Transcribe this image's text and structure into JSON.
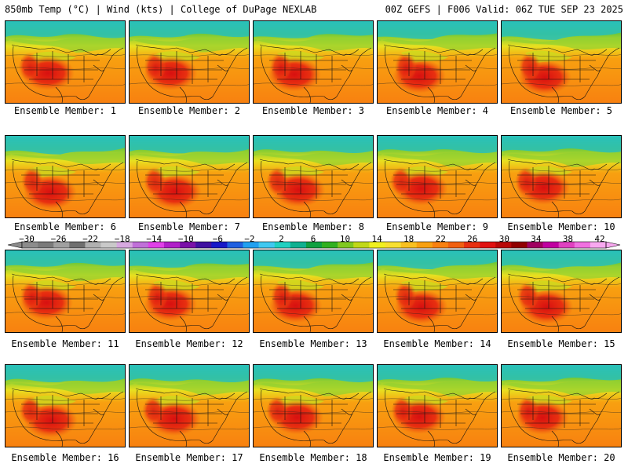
{
  "header": {
    "left_title": "850mb Temp (°C) | Wind (kts) | College of DuPage NEXLAB",
    "right_title": "00Z GEFS | F006 Valid: 06Z TUE SEP 23 2025"
  },
  "panels": [
    {
      "member": 1,
      "label": "Ensemble Member: 1"
    },
    {
      "member": 2,
      "label": "Ensemble Member: 2"
    },
    {
      "member": 3,
      "label": "Ensemble Member: 3"
    },
    {
      "member": 4,
      "label": "Ensemble Member: 4"
    },
    {
      "member": 5,
      "label": "Ensemble Member: 5"
    },
    {
      "member": 6,
      "label": "Ensemble Member: 6"
    },
    {
      "member": 7,
      "label": "Ensemble Member: 7"
    },
    {
      "member": 8,
      "label": "Ensemble Member: 8"
    },
    {
      "member": 9,
      "label": "Ensemble Member: 9"
    },
    {
      "member": 10,
      "label": "Ensemble Member: 10"
    },
    {
      "member": 11,
      "label": "Ensemble Member: 11"
    },
    {
      "member": 12,
      "label": "Ensemble Member: 12"
    },
    {
      "member": 13,
      "label": "Ensemble Member: 13"
    },
    {
      "member": 14,
      "label": "Ensemble Member: 14"
    },
    {
      "member": 15,
      "label": "Ensemble Member: 15"
    },
    {
      "member": 16,
      "label": "Ensemble Member: 16"
    },
    {
      "member": 17,
      "label": "Ensemble Member: 17"
    },
    {
      "member": 18,
      "label": "Ensemble Member: 18"
    },
    {
      "member": 19,
      "label": "Ensemble Member: 19"
    },
    {
      "member": 20,
      "label": "Ensemble Member: 20"
    }
  ],
  "colorbar": {
    "labels": [
      "−30",
      "−26",
      "−22",
      "−18",
      "−14",
      "−10",
      "−6",
      "−2",
      "2",
      "6",
      "10",
      "14",
      "18",
      "22",
      "26",
      "30",
      "34",
      "38",
      "42"
    ],
    "colors": [
      "#8c8c8c",
      "#7a7a7a",
      "#a0a0a0",
      "#6f6f6f",
      "#b0b0b0",
      "#c9c9c9",
      "#d7a8e0",
      "#c070d8",
      "#e040e8",
      "#b020c8",
      "#7a10a8",
      "#4010a0",
      "#1818c8",
      "#2060e0",
      "#20a0f0",
      "#40c8f0",
      "#20d0c0",
      "#10b090",
      "#10a040",
      "#30b020",
      "#80c820",
      "#c0d818",
      "#f0f020",
      "#f8e030",
      "#f8c020",
      "#f8a010",
      "#f88010",
      "#f06010",
      "#e83010",
      "#e01010",
      "#b80808",
      "#900000",
      "#a00060",
      "#c000a0",
      "#e040c0",
      "#f070e0",
      "#f8a8f0"
    ]
  }
}
